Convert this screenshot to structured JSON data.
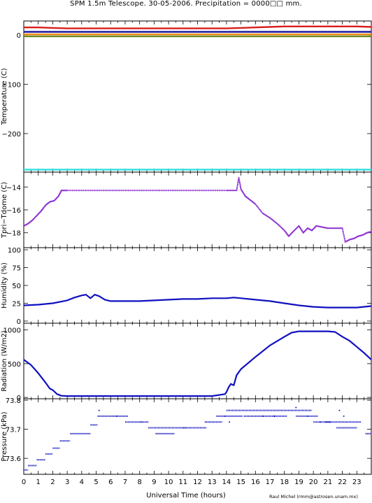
{
  "title": "SPM 1.5m Telescope. 30-05-2006. Precipitation = 0000□□ mm.",
  "credit": "Raul Michel (rmm@astrosen.unam.mx)",
  "colors": {
    "axis": "#000000",
    "red": "#d81e1e",
    "dark_blue": "#1a1aa0",
    "orange": "#f08a14",
    "green": "#6a8a20",
    "cyan": "#35e0e0",
    "purple": "#8e33d2",
    "blue": "#1010c0"
  },
  "chart_data": [
    {
      "type": "line",
      "ylabel": "Temperature (C)",
      "xlim": [
        0,
        24
      ],
      "ylim": [
        -278,
        28
      ],
      "yticks": [
        0,
        -100,
        -200
      ],
      "ytick_labels": [
        "0",
        "−100",
        "−200"
      ],
      "series": [
        {
          "color": "red",
          "x": [
            0,
            1,
            2,
            3,
            4,
            6,
            8,
            10,
            12,
            14,
            15,
            16,
            17,
            18,
            19,
            20,
            21,
            22,
            23,
            24
          ],
          "y": [
            15,
            15,
            14,
            13,
            13,
            13,
            13,
            13,
            13,
            13,
            14,
            15,
            16,
            17,
            17,
            17,
            17,
            17,
            17,
            16
          ]
        },
        {
          "color": "dark_blue",
          "x": [
            0,
            24
          ],
          "y": [
            6,
            6
          ]
        },
        {
          "color": "orange",
          "x": [
            0,
            24
          ],
          "y": [
            1,
            1
          ]
        },
        {
          "color": "green",
          "x": [
            0,
            24
          ],
          "y": [
            -3,
            -3
          ]
        },
        {
          "color": "cyan",
          "x": [
            0,
            24
          ],
          "y": [
            -273,
            -273
          ]
        }
      ]
    },
    {
      "type": "scatter",
      "ylabel": "Tpri−Tdome (C)",
      "xlim": [
        0,
        24
      ],
      "ylim": [
        -19.3,
        -12.7
      ],
      "yticks": [
        -14,
        -16,
        -18
      ],
      "ytick_labels": [
        "−14",
        "−16",
        "−18"
      ],
      "series": [
        {
          "color": "purple",
          "x": [
            0,
            0.3,
            0.6,
            0.9,
            1.2,
            1.5,
            1.8,
            2.1,
            2.4,
            2.6,
            3,
            4,
            5,
            6,
            7,
            8,
            9,
            10,
            11,
            12,
            13,
            14,
            14.7,
            14.85,
            15,
            15.3,
            15.6,
            16,
            16.5,
            17,
            17.5,
            18,
            18.3,
            18.6,
            19,
            19.3,
            19.6,
            19.9,
            20.2,
            20.6,
            21,
            21.5,
            22,
            22.2,
            22.5,
            22.8,
            23.1,
            23.4,
            23.7,
            24
          ],
          "y": [
            -17.4,
            -17.2,
            -16.9,
            -16.5,
            -16.1,
            -15.6,
            -15.3,
            -15.2,
            -14.8,
            -14.3,
            -14.3,
            -14.3,
            -14.3,
            -14.3,
            -14.3,
            -14.3,
            -14.3,
            -14.3,
            -14.3,
            -14.3,
            -14.3,
            -14.3,
            -14.3,
            -13.2,
            -14.2,
            -14.8,
            -15.1,
            -15.5,
            -16.3,
            -16.7,
            -17.2,
            -17.8,
            -18.3,
            -17.9,
            -17.4,
            -18.0,
            -17.6,
            -17.8,
            -17.4,
            -17.5,
            -17.6,
            -17.6,
            -17.6,
            -18.8,
            -18.6,
            -18.5,
            -18.3,
            -18.2,
            -18.0,
            -17.9
          ]
        }
      ]
    },
    {
      "type": "line",
      "ylabel": "Humidity (%)",
      "xlim": [
        0,
        24
      ],
      "ylim": [
        -3,
        103
      ],
      "yticks": [
        100,
        75,
        50,
        25,
        0
      ],
      "ytick_labels": [
        "100",
        "75",
        "50",
        "25",
        "0"
      ],
      "series": [
        {
          "color": "blue",
          "x": [
            0,
            1,
            2,
            3,
            3.5,
            4,
            4.3,
            4.6,
            4.9,
            5.2,
            5.6,
            6,
            7,
            8,
            9,
            10,
            11,
            12,
            13,
            14,
            14.5,
            15,
            16,
            17,
            18,
            19,
            20,
            21,
            22,
            23,
            24
          ],
          "y": [
            22,
            23,
            25,
            29,
            33,
            36,
            37,
            32,
            37,
            35,
            30,
            28,
            28,
            28,
            29,
            30,
            31,
            31,
            32,
            32,
            33,
            32,
            30,
            28,
            25,
            22,
            20,
            19,
            19,
            19,
            21
          ]
        }
      ]
    },
    {
      "type": "line",
      "ylabel": "Radiation (W/m2)",
      "xlim": [
        0,
        24
      ],
      "ylim": [
        -20,
        1100
      ],
      "yticks": [
        1000,
        500,
        0
      ],
      "ytick_labels": [
        "1000",
        "500",
        "0"
      ],
      "series": [
        {
          "color": "blue",
          "x": [
            0,
            0.5,
            1,
            1.5,
            1.8,
            2.0,
            2.3,
            2.6,
            3,
            5,
            8,
            11,
            13,
            13.9,
            14.0,
            14.15,
            14.3,
            14.5,
            14.7,
            15,
            16,
            17,
            18,
            18.5,
            19,
            20,
            21,
            21.5,
            22,
            22.5,
            23,
            23.5,
            24
          ],
          "y": [
            560,
            480,
            360,
            220,
            130,
            110,
            50,
            25,
            20,
            20,
            20,
            20,
            20,
            50,
            80,
            150,
            200,
            180,
            330,
            420,
            600,
            770,
            900,
            960,
            980,
            980,
            980,
            970,
            900,
            840,
            750,
            660,
            560
          ]
        }
      ]
    },
    {
      "type": "scatter",
      "ylabel": "Pressure (kPa)",
      "xlim": [
        0,
        24
      ],
      "ylim": [
        73.545,
        73.805
      ],
      "yticks": [
        73.8,
        73.7,
        73.6
      ],
      "ytick_labels": [
        "73.8",
        "73.7",
        "73.6"
      ],
      "segments": [
        {
          "x": [
            0,
            0.3
          ],
          "y": 73.56
        },
        {
          "x": [
            0.3,
            0.9
          ],
          "y": 73.575
        },
        {
          "x": [
            0.9,
            1.5
          ],
          "y": 73.595
        },
        {
          "x": [
            1.5,
            2.0
          ],
          "y": 73.615
        },
        {
          "x": [
            2.0,
            2.5
          ],
          "y": 73.635
        },
        {
          "x": [
            2.5,
            3.2
          ],
          "y": 73.66
        },
        {
          "x": [
            3.2,
            4.6
          ],
          "y": 73.685
        },
        {
          "x": [
            4.6,
            5.1
          ],
          "y": 73.715
        },
        {
          "x": [
            5.1,
            7.2
          ],
          "y": 73.745
        },
        {
          "x": [
            7.0,
            8.6
          ],
          "y": 73.725
        },
        {
          "x": [
            8.6,
            11.2
          ],
          "y": 73.705
        },
        {
          "x": [
            9.1,
            10.4
          ],
          "y": 73.685
        },
        {
          "x": [
            11.0,
            12.6
          ],
          "y": 73.705
        },
        {
          "x": [
            12.5,
            13.7
          ],
          "y": 73.725
        },
        {
          "x": [
            13.3,
            15.1
          ],
          "y": 73.745
        },
        {
          "x": [
            14.0,
            19.9
          ],
          "y": 73.765
        },
        {
          "x": [
            15.2,
            18.2
          ],
          "y": 73.745
        },
        {
          "x": [
            18.8,
            20.3
          ],
          "y": 73.745
        },
        {
          "x": [
            20.0,
            21.2
          ],
          "y": 73.725
        },
        {
          "x": [
            20.8,
            23.3
          ],
          "y": 73.725
        },
        {
          "x": [
            21.6,
            23.0
          ],
          "y": 73.705
        },
        {
          "x": [
            23.6,
            24.0
          ],
          "y": 73.685
        }
      ],
      "scatter_points": {
        "x": [
          5.2,
          6.4,
          8.1,
          13.9,
          14.2,
          16.5,
          17.3,
          18.8,
          19.6,
          20.5,
          21.8,
          22.1
        ],
        "y": [
          73.765,
          73.745,
          73.725,
          73.745,
          73.725,
          73.745,
          73.745,
          73.775,
          73.745,
          73.725,
          73.765,
          73.745
        ]
      },
      "xlabel": "Universal Time (hours)",
      "xticks": [
        0,
        1,
        2,
        3,
        4,
        5,
        6,
        7,
        8,
        9,
        10,
        11,
        12,
        13,
        14,
        15,
        16,
        17,
        18,
        19,
        20,
        21,
        22,
        23
      ]
    }
  ]
}
